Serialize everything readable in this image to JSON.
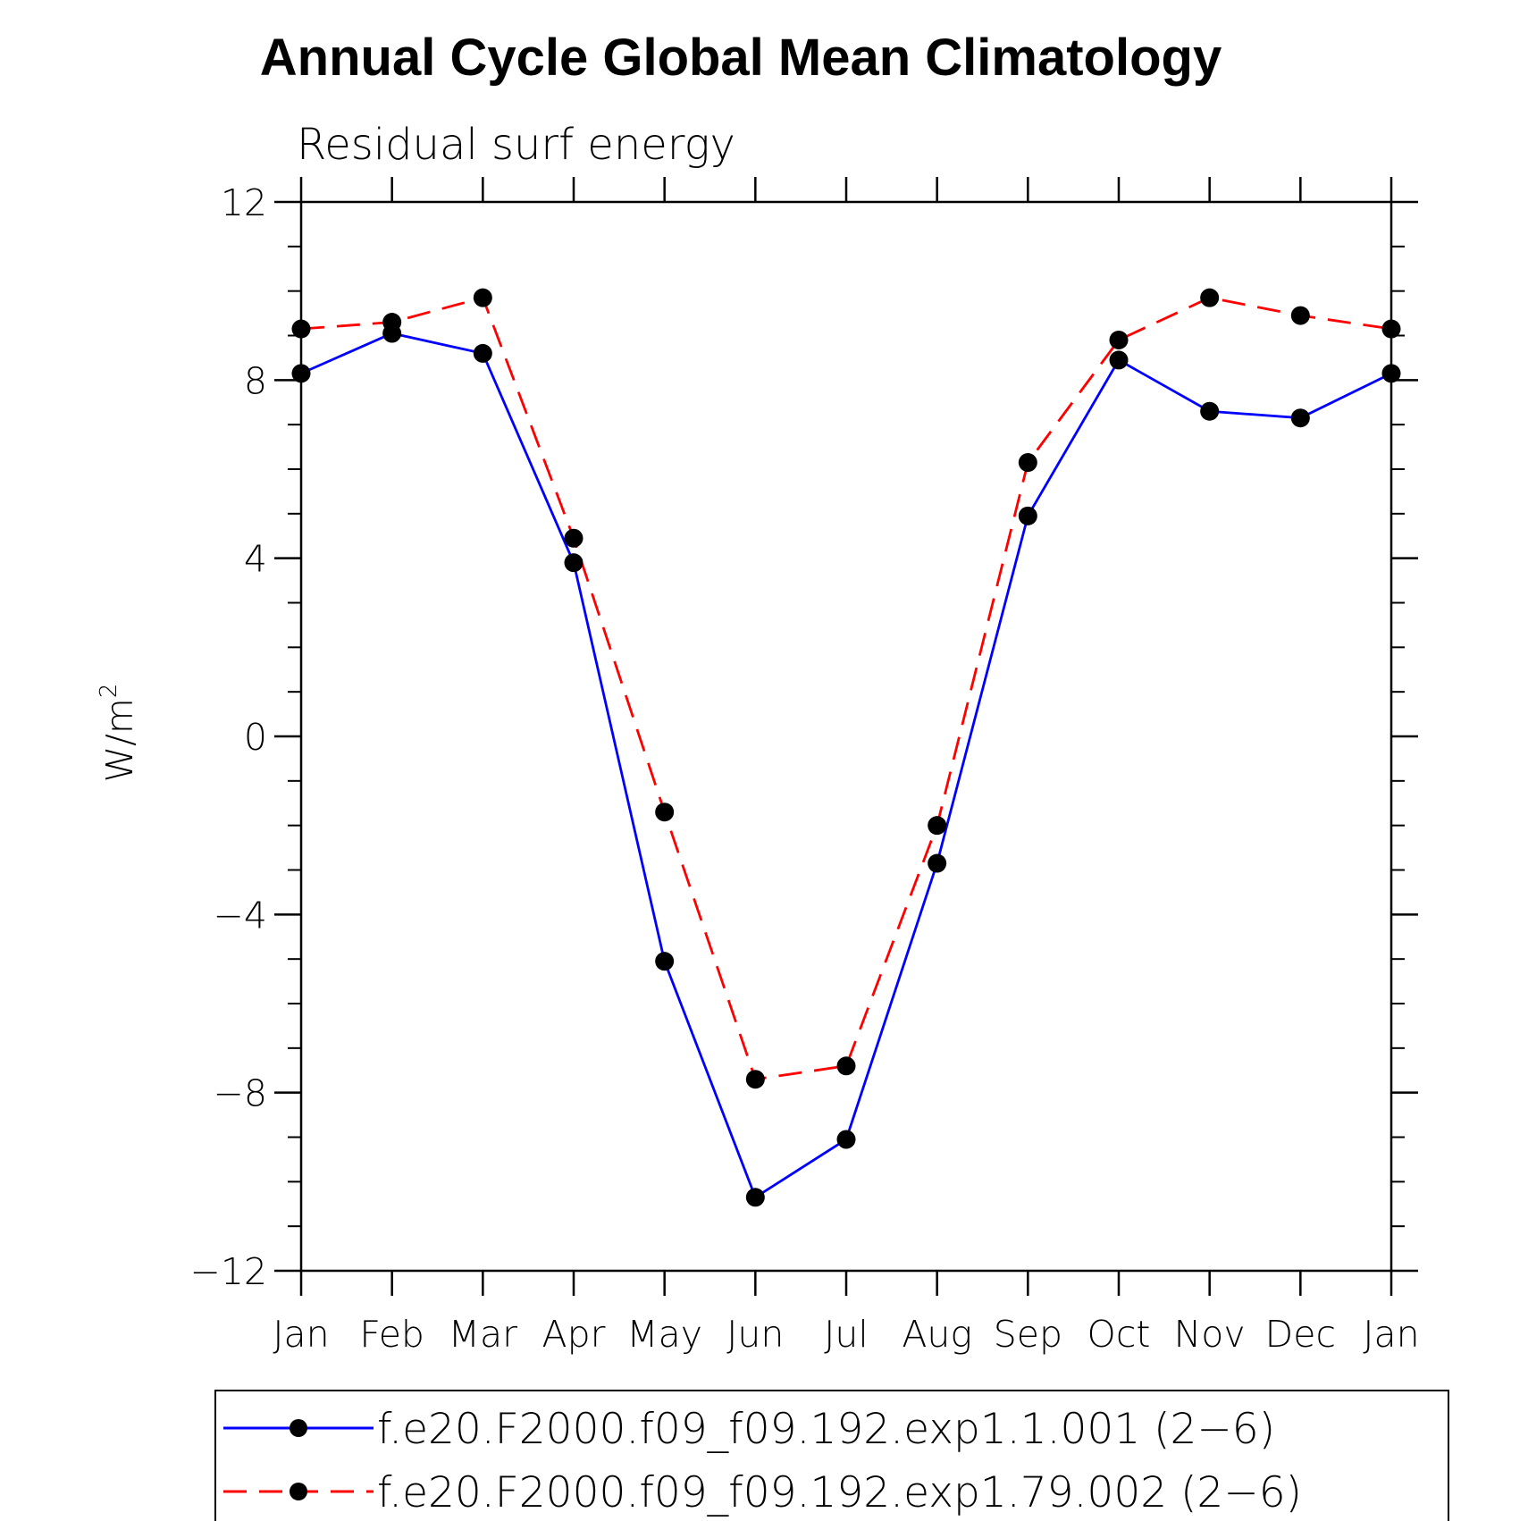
{
  "chart_data": {
    "type": "line",
    "title": "Annual Cycle Global Mean Climatology",
    "subtitle": "Residual surf energy",
    "xlabel": "",
    "ylabel": "W/m",
    "ylabel_superscript": "2",
    "categories": [
      "Jan",
      "Feb",
      "Mar",
      "Apr",
      "May",
      "Jun",
      "Jul",
      "Aug",
      "Sep",
      "Oct",
      "Nov",
      "Dec",
      "Jan"
    ],
    "ylim": [
      -12,
      12
    ],
    "yticks": [
      12,
      8,
      4,
      0,
      -4,
      -8,
      -12
    ],
    "ytick_labels": [
      "12",
      "8",
      "4",
      "0",
      "−4",
      "−8",
      "−12"
    ],
    "grid": false,
    "legend_position": "bottom",
    "series": [
      {
        "name": "f.e20.F2000.f09_f09.192.exp1.1.001 (2−6)",
        "color": "#0000ff",
        "dash": "solid",
        "marker": "filled-circle",
        "values": [
          8.15,
          9.05,
          8.6,
          3.9,
          -5.05,
          -10.35,
          -9.05,
          -2.85,
          4.95,
          8.45,
          7.3,
          7.15,
          8.15
        ]
      },
      {
        "name": "f.e20.F2000.f09_f09.192.exp1.79.002 (2−6)",
        "color": "#ff0000",
        "dash": "dashed",
        "marker": "filled-circle",
        "values": [
          9.15,
          9.3,
          9.85,
          4.45,
          -1.7,
          -7.7,
          -7.4,
          -2.0,
          6.15,
          8.9,
          9.85,
          9.45,
          9.15
        ]
      }
    ]
  }
}
